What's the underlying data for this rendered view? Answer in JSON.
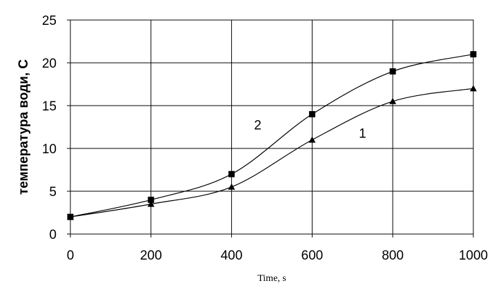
{
  "chart_data": {
    "type": "line",
    "title": "",
    "xlabel": "Time, s",
    "ylabel": "температура води, С",
    "x": [
      0,
      200,
      400,
      600,
      800,
      1000
    ],
    "xlim": [
      0,
      1000
    ],
    "ylim": [
      0,
      25
    ],
    "xticks": [
      0,
      200,
      400,
      600,
      800,
      1000
    ],
    "yticks": [
      0,
      5,
      10,
      15,
      20,
      25
    ],
    "grid": true,
    "legend": "none",
    "series": [
      {
        "name": "1",
        "marker": "triangle",
        "values": [
          2,
          3.5,
          5.5,
          11,
          15.5,
          17
        ]
      },
      {
        "name": "2",
        "marker": "square",
        "values": [
          2,
          4,
          7,
          14,
          19,
          21
        ]
      }
    ],
    "annotations": [
      {
        "text": "2",
        "x": 465,
        "y": 12.8
      },
      {
        "text": "1",
        "x": 725,
        "y": 11.8
      }
    ],
    "colors": {
      "line": "#000000",
      "grid": "#000000",
      "background": "#ffffff"
    }
  }
}
